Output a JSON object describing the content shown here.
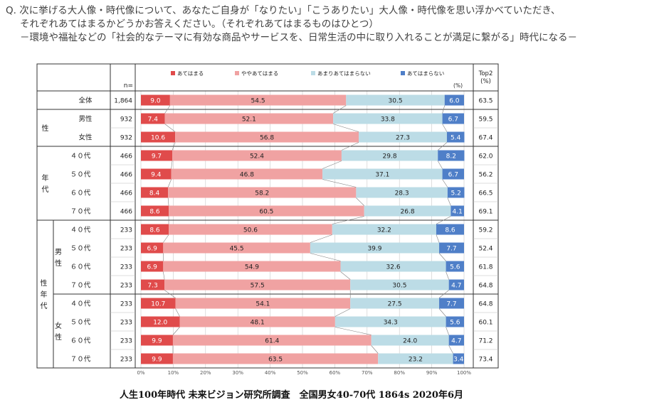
{
  "question": {
    "line1": "Q. 次に挙げる大人像・時代像について、あなたご自身が「なりたい」「こうありたい」大人像・時代像を思い浮かべていただき、",
    "line2": "それぞれあてはまるかどうかお答えください。（それぞれあてはまるものはひとつ）",
    "line3": "－環境や福祉などの「社会的なテーマに有効な商品やサービスを、日常生活の中に取り入れることが満足に繋がる」時代になる－"
  },
  "footer": "人生100年時代 未来ビジョン研究所調査　全国男女40-70代 1864s  2020年6月",
  "colors": {
    "s1": "#e04b4b",
    "s2": "#f0a2a2",
    "s3": "#bcdce6",
    "s4": "#4f7fc8",
    "grid": "#c8c8c8",
    "connector": "#808080"
  },
  "chart_data": {
    "type": "bar",
    "orientation": "horizontal",
    "stacked": "100%",
    "n_label": "n=",
    "percent_label": "(%)",
    "top2_label": [
      "Top2",
      "(%)"
    ],
    "legend": [
      "あてはまる",
      "ややあてはまる",
      "あまりあてはまらない",
      "あてはまらない"
    ],
    "x_ticks": [
      "0%",
      "10%",
      "20%",
      "30%",
      "40%",
      "50%",
      "60%",
      "70%",
      "80%",
      "90%",
      "100%"
    ],
    "xlim": [
      0,
      100
    ],
    "groups": [
      {
        "label": "",
        "sub": "",
        "rows": [
          0
        ]
      },
      {
        "label": "性",
        "sub": "",
        "rows": [
          1,
          2
        ]
      },
      {
        "label": "年代",
        "sub": "",
        "rows": [
          3,
          4,
          5,
          6
        ]
      },
      {
        "label": "性年代",
        "sub": "男性",
        "rows": [
          7,
          8,
          9,
          10
        ]
      },
      {
        "label": "性年代",
        "sub": "女性",
        "rows": [
          11,
          12,
          13,
          14
        ]
      }
    ],
    "outer_groups": [
      {
        "label": "性年代",
        "rows": [
          7,
          14
        ]
      }
    ],
    "subgroups": [
      {
        "label": "男性",
        "rows": [
          7,
          10
        ]
      },
      {
        "label": "女性",
        "rows": [
          11,
          14
        ]
      }
    ],
    "rows": [
      {
        "label": "全体",
        "n": "1,864",
        "values": [
          9.0,
          54.5,
          30.5,
          6.0
        ],
        "top2": "63.5"
      },
      {
        "label": "男性",
        "n": "932",
        "values": [
          7.4,
          52.1,
          33.8,
          6.7
        ],
        "top2": "59.5"
      },
      {
        "label": "女性",
        "n": "932",
        "values": [
          10.6,
          56.8,
          27.3,
          5.4
        ],
        "top2": "67.4"
      },
      {
        "label": "４０代",
        "n": "466",
        "values": [
          9.7,
          52.4,
          29.8,
          8.2
        ],
        "top2": "62.0"
      },
      {
        "label": "５０代",
        "n": "466",
        "values": [
          9.4,
          46.8,
          37.1,
          6.7
        ],
        "top2": "56.2"
      },
      {
        "label": "６０代",
        "n": "466",
        "values": [
          8.4,
          58.2,
          28.3,
          5.2
        ],
        "top2": "66.5"
      },
      {
        "label": "７０代",
        "n": "466",
        "values": [
          8.6,
          60.5,
          26.8,
          4.1
        ],
        "top2": "69.1"
      },
      {
        "label": "４０代",
        "n": "233",
        "values": [
          8.6,
          50.6,
          32.2,
          8.6
        ],
        "top2": "59.2"
      },
      {
        "label": "５０代",
        "n": "233",
        "values": [
          6.9,
          45.5,
          39.9,
          7.7
        ],
        "top2": "52.4"
      },
      {
        "label": "６０代",
        "n": "233",
        "values": [
          6.9,
          54.9,
          32.6,
          5.6
        ],
        "top2": "61.8"
      },
      {
        "label": "７０代",
        "n": "233",
        "values": [
          7.3,
          57.5,
          30.5,
          4.7
        ],
        "top2": "64.8"
      },
      {
        "label": "４０代",
        "n": "233",
        "values": [
          10.7,
          54.1,
          27.5,
          7.7
        ],
        "top2": "64.8"
      },
      {
        "label": "５０代",
        "n": "233",
        "values": [
          12.0,
          48.1,
          34.3,
          5.6
        ],
        "top2": "60.1"
      },
      {
        "label": "６０代",
        "n": "233",
        "values": [
          9.9,
          61.4,
          24.0,
          4.7
        ],
        "top2": "71.2"
      },
      {
        "label": "７０代",
        "n": "233",
        "values": [
          9.9,
          63.5,
          23.2,
          3.4
        ],
        "top2": "73.4"
      }
    ]
  }
}
